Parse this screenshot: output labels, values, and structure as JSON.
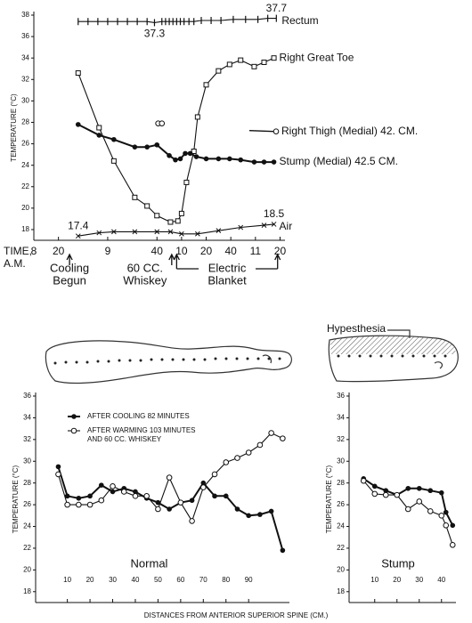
{
  "chart_data": [
    {
      "type": "line",
      "ylabel": "TEMPERATURE (°C)",
      "xlabel": [
        "TIME,",
        "A.M."
      ],
      "xlim": [
        0,
        204
      ],
      "ylim": [
        17,
        38
      ],
      "yticks": [
        18,
        20,
        22,
        24,
        26,
        28,
        30,
        32,
        34,
        36,
        38
      ],
      "xticks": [
        {
          "value": 0,
          "label": "8"
        },
        {
          "value": 20,
          "label": "20"
        },
        {
          "value": 60,
          "label": "9"
        },
        {
          "value": 100,
          "label": "40"
        },
        {
          "value": 120,
          "label": "10"
        },
        {
          "value": 140,
          "label": "20"
        },
        {
          "value": 160,
          "label": "40"
        },
        {
          "value": 180,
          "label": "11"
        },
        {
          "value": 200,
          "label": "20"
        }
      ],
      "series": [
        {
          "name": "Rectum",
          "color": "#111",
          "marker": "tick",
          "x": [
            36,
            44,
            52,
            60,
            68,
            76,
            84,
            92,
            98,
            104,
            107,
            110,
            113,
            116,
            119,
            122,
            126,
            130,
            136,
            144,
            152,
            162,
            172,
            182,
            190,
            197
          ],
          "values": [
            37.4,
            37.4,
            37.4,
            37.4,
            37.4,
            37.4,
            37.4,
            37.4,
            37.3,
            37.4,
            37.4,
            37.4,
            37.4,
            37.4,
            37.4,
            37.4,
            37.4,
            37.4,
            37.5,
            37.5,
            37.5,
            37.6,
            37.6,
            37.6,
            37.7,
            37.7
          ],
          "value_labels": [
            null,
            null,
            null,
            null,
            null,
            null,
            null,
            null,
            "37.3",
            null,
            null,
            null,
            null,
            null,
            null,
            null,
            null,
            null,
            null,
            null,
            null,
            null,
            null,
            null,
            null,
            "37.7"
          ]
        },
        {
          "name": "Right Great Toe",
          "color": "#111",
          "marker": "square-open",
          "x": [
            36,
            53,
            65,
            82,
            92,
            100,
            111,
            117,
            120,
            124,
            130,
            133,
            140,
            150,
            159,
            168,
            179,
            187,
            195
          ],
          "values": [
            32.6,
            27.5,
            24.4,
            21.0,
            20.2,
            19.3,
            18.7,
            18.8,
            19.5,
            22.4,
            25.3,
            28.5,
            31.5,
            32.8,
            33.4,
            33.8,
            33.2,
            33.6,
            34.0
          ]
        },
        {
          "name": "Right Thigh (Medial) 42. CM.",
          "color": "#111",
          "marker": "circle-open",
          "x": [
            101,
            104
          ],
          "values": [
            27.9,
            27.9
          ]
        },
        {
          "name": "Stump (Medial) 42.5 CM.",
          "color": "#111",
          "marker": "circle-filled",
          "x": [
            36,
            53,
            65,
            82,
            92,
            100,
            110,
            115,
            119,
            123,
            127,
            132,
            140,
            150,
            159,
            168,
            179,
            187,
            195
          ],
          "values": [
            27.8,
            26.8,
            26.4,
            25.7,
            25.7,
            25.9,
            24.9,
            24.5,
            24.6,
            25.1,
            25.1,
            24.8,
            24.6,
            24.6,
            24.6,
            24.5,
            24.3,
            24.3,
            24.3
          ]
        },
        {
          "name": "Air",
          "color": "#111",
          "marker": "x",
          "x": [
            36,
            53,
            65,
            82,
            100,
            111,
            120,
            133,
            150,
            168,
            187,
            195
          ],
          "values": [
            17.4,
            17.7,
            17.8,
            17.8,
            17.8,
            17.8,
            17.6,
            17.6,
            17.9,
            18.2,
            18.4,
            18.5
          ],
          "value_labels": [
            "17.4",
            null,
            null,
            null,
            null,
            null,
            null,
            null,
            null,
            null,
            null,
            "18.5"
          ]
        }
      ],
      "events": [
        {
          "text": [
            "Cooling",
            "Begun"
          ],
          "x": [
            29
          ]
        },
        {
          "text": [
            "60 CC.",
            "Whiskey"
          ],
          "x": [
            112
          ]
        },
        {
          "text": [
            "Electric",
            "Blanket"
          ],
          "x": [
            116,
            198
          ]
        }
      ]
    },
    {
      "type": "line",
      "ylabel": "TEMPERATURE (°C)",
      "xlabel": "DISTANCES FROM ANTERIOR SUPERIOR SPINE (CM.)",
      "label": "Normal",
      "xlim": [
        -4,
        108
      ],
      "ylim": [
        17,
        36
      ],
      "yticks": [
        18,
        20,
        22,
        24,
        26,
        28,
        30,
        32,
        34,
        36
      ],
      "xticks": [
        10,
        20,
        30,
        40,
        50,
        60,
        70,
        80,
        90
      ],
      "x": [
        6,
        10,
        15,
        20,
        25,
        30,
        35,
        40,
        45,
        50,
        55,
        60,
        65,
        70,
        75,
        80,
        85,
        90,
        95,
        100,
        105
      ],
      "series": [
        {
          "name": "AFTER COOLING 82 MINUTES",
          "color": "#111",
          "marker": "circle-filled",
          "values": [
            29.5,
            26.8,
            26.6,
            26.8,
            27.8,
            27.2,
            27.5,
            27.2,
            26.6,
            26.2,
            25.6,
            26.2,
            26.4,
            28.0,
            26.8,
            26.8,
            25.6,
            25.0,
            25.1,
            25.4,
            21.8
          ]
        },
        {
          "name": [
            "AFTER WARMING 103 MINUTES",
            "AND 60 CC. WHISKEY"
          ],
          "color": "#111",
          "marker": "circle-open",
          "values": [
            28.8,
            26.0,
            26.0,
            26.0,
            26.4,
            27.7,
            27.2,
            26.8,
            26.8,
            25.6,
            28.5,
            26.2,
            24.5,
            27.6,
            28.8,
            29.9,
            30.3,
            30.8,
            31.5,
            32.6,
            32.1
          ]
        }
      ]
    },
    {
      "type": "line",
      "ylabel": "TEMPERATURE (°C)",
      "label": "Stump",
      "annotation": "Hypesthesia",
      "xlim": [
        -1.5,
        46.5
      ],
      "ylim": [
        17,
        36
      ],
      "yticks": [
        18,
        20,
        22,
        24,
        26,
        28,
        30,
        32,
        34,
        36
      ],
      "xticks": [
        10,
        20,
        30,
        40
      ],
      "x": [
        5,
        10,
        15,
        20,
        25,
        30,
        35,
        40,
        42,
        45
      ],
      "series": [
        {
          "color": "#111",
          "marker": "circle-filled",
          "values": [
            28.4,
            27.7,
            27.3,
            26.9,
            27.5,
            27.5,
            27.3,
            27.1,
            25.3,
            24.1
          ]
        },
        {
          "color": "#111",
          "marker": "circle-open",
          "values": [
            28.2,
            27.0,
            26.9,
            26.9,
            25.6,
            26.3,
            25.4,
            25.0,
            24.1,
            22.3
          ]
        }
      ]
    }
  ]
}
